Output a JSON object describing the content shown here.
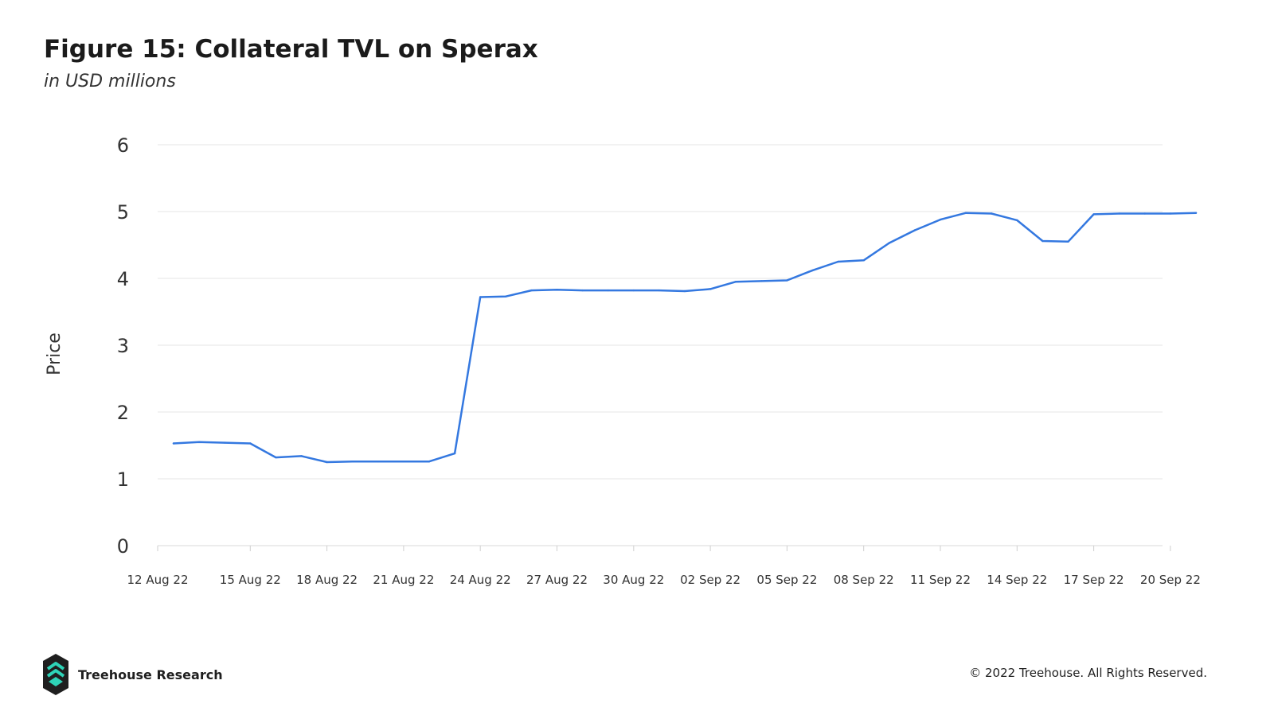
{
  "header": {
    "title": "Figure 15: Collateral TVL on Sperax",
    "subtitle": "in USD millions"
  },
  "footer": {
    "brand": "Treehouse Research",
    "copyright": "© 2022 Treehouse. All Rights Reserved."
  },
  "colors": {
    "line": "#3478e0",
    "grid": "#e6e6e6",
    "tick_text": "#333333",
    "logo_teal": "#2ed3b7",
    "logo_dark": "#1f1f1f"
  },
  "chart_data": {
    "type": "line",
    "title": "Figure 15: Collateral TVL on Sperax",
    "subtitle": "in USD millions",
    "xlabel": "",
    "ylabel": "Price",
    "ylim": [
      0,
      6
    ],
    "yticks": [
      "0",
      "1",
      "2",
      "3",
      "4",
      "5",
      "6"
    ],
    "xticks": [
      "12 Aug 22",
      "15 Aug 22",
      "18 Aug 22",
      "21 Aug 22",
      "24 Aug 22",
      "27 Aug 22",
      "30 Aug 22",
      "02 Sep 22",
      "05 Sep 22",
      "08 Sep 22",
      "11 Sep 22",
      "14 Sep 22",
      "17 Sep 22",
      "20 Sep 22"
    ],
    "grid": true,
    "legend": "none",
    "series": [
      {
        "x": [
          "12 Aug 22",
          "13 Aug 22",
          "14 Aug 22",
          "15 Aug 22",
          "16 Aug 22",
          "17 Aug 22",
          "18 Aug 22",
          "19 Aug 22",
          "20 Aug 22",
          "21 Aug 22",
          "22 Aug 22",
          "23 Aug 22",
          "24 Aug 22",
          "25 Aug 22",
          "26 Aug 22",
          "27 Aug 22",
          "28 Aug 22",
          "29 Aug 22",
          "30 Aug 22",
          "31 Aug 22",
          "01 Sep 22",
          "02 Sep 22",
          "03 Sep 22",
          "04 Sep 22",
          "05 Sep 22",
          "06 Sep 22",
          "07 Sep 22",
          "08 Sep 22",
          "09 Sep 22",
          "10 Sep 22",
          "11 Sep 22",
          "12 Sep 22",
          "13 Sep 22",
          "14 Sep 22",
          "15 Sep 22",
          "16 Sep 22",
          "17 Sep 22",
          "18 Sep 22",
          "19 Sep 22",
          "20 Sep 22",
          "21 Sep 22"
        ],
        "values": [
          1.53,
          1.55,
          1.54,
          1.53,
          1.32,
          1.34,
          1.25,
          1.26,
          1.26,
          1.26,
          1.26,
          1.38,
          3.72,
          3.73,
          3.82,
          3.83,
          3.82,
          3.82,
          3.82,
          3.82,
          3.81,
          3.84,
          3.95,
          3.96,
          3.97,
          4.12,
          4.25,
          4.27,
          4.53,
          4.72,
          4.88,
          4.98,
          4.97,
          4.87,
          4.56,
          4.55,
          4.96,
          4.97,
          4.97,
          4.97,
          4.98
        ]
      }
    ]
  }
}
